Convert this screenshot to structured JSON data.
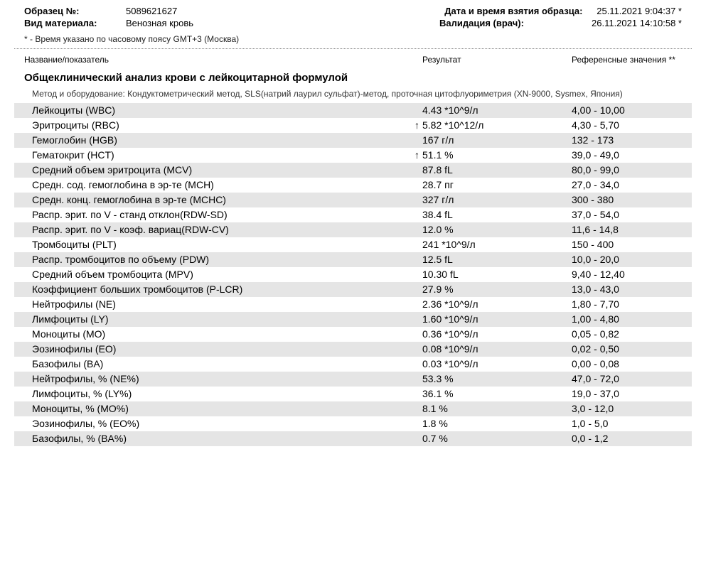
{
  "header": {
    "sample_label": "Образец №:",
    "sample_value": "5089621627",
    "material_label": "Вид материала:",
    "material_value": "Венозная кровь",
    "sampledate_label": "Дата и время взятия образца:",
    "sampledate_value": "25.11.2021  9:04:37 *",
    "validation_label": "Валидация (врач):",
    "validation_value": "26.11.2021  14:10:58 *"
  },
  "tz_note": "* - Время указано по часовому поясу GMT+3 (Москва)",
  "columns": {
    "name": "Название/показатель",
    "result": "Результат",
    "ref": "Референсные значения **"
  },
  "section_title": "Общеклинический анализ крови с лейкоцитарной формулой",
  "method_note": "Метод и оборудование:  Кондуктометрический метод, SLS(натрий лаурил сульфат)-метод, проточная цитофлуориметрия (XN-9000, Sysmex, Япония)",
  "rows": [
    {
      "name": "Лейкоциты (WBC)",
      "flag": "",
      "result": "4.43 *10^9/л",
      "ref": "4,00 - 10,00",
      "alt": true
    },
    {
      "name": "Эритроциты (RBC)",
      "flag": "↑",
      "result": "5.82 *10^12/л",
      "ref": "4,30 - 5,70",
      "alt": false
    },
    {
      "name": "Гемоглобин (HGB)",
      "flag": "",
      "result": "167 г/л",
      "ref": "132 - 173",
      "alt": true
    },
    {
      "name": "Гематокрит (HCT)",
      "flag": "↑",
      "result": "51.1 %",
      "ref": "39,0 - 49,0",
      "alt": false
    },
    {
      "name": "Средний объем эритроцита (MCV)",
      "flag": "",
      "result": "87.8 fL",
      "ref": "80,0 - 99,0",
      "alt": true
    },
    {
      "name": "Средн. сод. гемоглобина в эр-те (MCH)",
      "flag": "",
      "result": "28.7 пг",
      "ref": "27,0 - 34,0",
      "alt": false
    },
    {
      "name": "Средн. конц. гемоглобина в эр-те (MCHC)",
      "flag": "",
      "result": "327 г/л",
      "ref": "300 - 380",
      "alt": true
    },
    {
      "name": "Распр. эрит. по V - станд отклон(RDW-SD)",
      "flag": "",
      "result": "38.4 fL",
      "ref": "37,0 - 54,0",
      "alt": false
    },
    {
      "name": "Распр. эрит. по V - коэф. вариац(RDW-CV)",
      "flag": "",
      "result": "12.0 %",
      "ref": "11,6 - 14,8",
      "alt": true
    },
    {
      "name": "Тромбоциты (PLT)",
      "flag": "",
      "result": "241 *10^9/л",
      "ref": "150 - 400",
      "alt": false
    },
    {
      "name": "Распр. тромбоцитов по объему (PDW)",
      "flag": "",
      "result": "12.5 fL",
      "ref": "10,0 - 20,0",
      "alt": true
    },
    {
      "name": "Средний объем тромбоцита (MPV)",
      "flag": "",
      "result": "10.30 fL",
      "ref": "9,40 - 12,40",
      "alt": false
    },
    {
      "name": "Коэффициент больших тромбоцитов (P-LCR)",
      "flag": "",
      "result": "27.9 %",
      "ref": "13,0 - 43,0",
      "alt": true
    },
    {
      "name": "Нейтрофилы (NE)",
      "flag": "",
      "result": "2.36 *10^9/л",
      "ref": "1,80 - 7,70",
      "alt": false
    },
    {
      "name": "Лимфоциты (LY)",
      "flag": "",
      "result": "1.60 *10^9/л",
      "ref": "1,00 - 4,80",
      "alt": true
    },
    {
      "name": "Моноциты (MO)",
      "flag": "",
      "result": "0.36 *10^9/л",
      "ref": "0,05 - 0,82",
      "alt": false
    },
    {
      "name": "Эозинофилы (EO)",
      "flag": "",
      "result": "0.08 *10^9/л",
      "ref": "0,02 - 0,50",
      "alt": true
    },
    {
      "name": "Базофилы (BA)",
      "flag": "",
      "result": "0.03 *10^9/л",
      "ref": "0,00 - 0,08",
      "alt": false
    },
    {
      "name": "Нейтрофилы, % (NE%)",
      "flag": "",
      "result": "53.3 %",
      "ref": "47,0 - 72,0",
      "alt": true
    },
    {
      "name": "Лимфоциты, % (LY%)",
      "flag": "",
      "result": "36.1 %",
      "ref": "19,0 - 37,0",
      "alt": false
    },
    {
      "name": "Моноциты, % (MO%)",
      "flag": "",
      "result": "8.1 %",
      "ref": "3,0 - 12,0",
      "alt": true
    },
    {
      "name": "Эозинофилы, % (EO%)",
      "flag": "",
      "result": "1.8 %",
      "ref": "1,0 - 5,0",
      "alt": false
    },
    {
      "name": "Базофилы, % (BA%)",
      "flag": "",
      "result": "0.7 %",
      "ref": "0,0 - 1,2",
      "alt": true
    }
  ],
  "colors": {
    "alt_row_bg": "#e5e5e5",
    "text": "#000000",
    "background": "#ffffff"
  }
}
